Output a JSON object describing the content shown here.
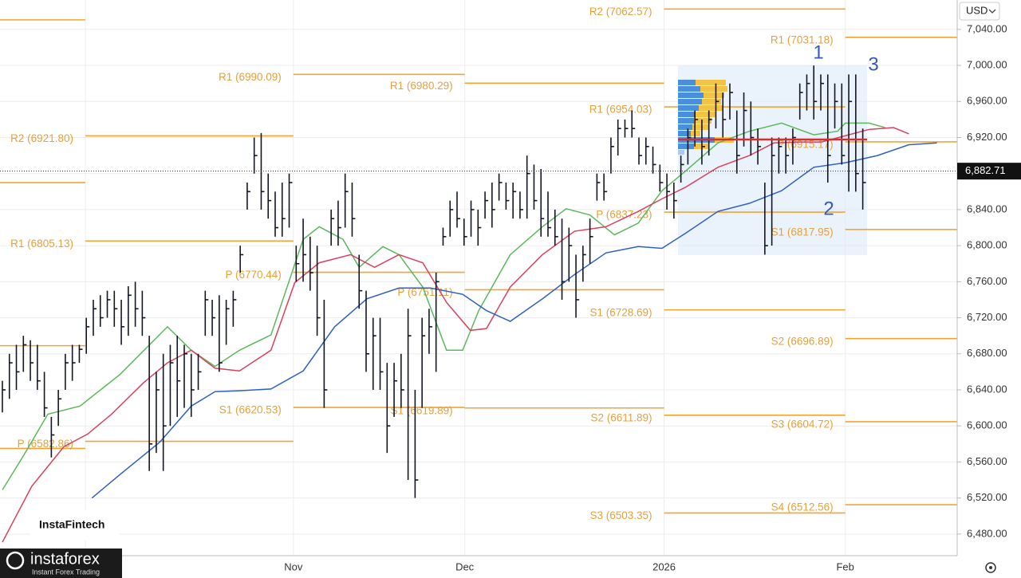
{
  "currency": "USD",
  "watermark": "InstaFintech",
  "brand": {
    "name": "instaforex",
    "tagline": "Instant Forex Trading"
  },
  "annotations": [
    "1",
    "2",
    "3"
  ],
  "chart_data": {
    "type": "ohlc",
    "xlim": [
      -0.34,
      136.5
    ],
    "ylim": [
      6456,
      7072.6
    ],
    "xticks": [
      {
        "value": 41.6,
        "label": "Nov"
      },
      {
        "value": 66.1,
        "label": "Dec"
      },
      {
        "value": 94.6,
        "label": "2026"
      },
      {
        "value": 120.5,
        "label": "Feb"
      }
    ],
    "yticks": [
      {
        "value": 6480,
        "label": "6,480.00"
      },
      {
        "value": 6520,
        "label": "6,520.00"
      },
      {
        "value": 6560,
        "label": "6,560.00"
      },
      {
        "value": 6600,
        "label": "6,600.00"
      },
      {
        "value": 6640,
        "label": "6,640.00"
      },
      {
        "value": 6680,
        "label": "6,680.00"
      },
      {
        "value": 6720,
        "label": "6,720.00"
      },
      {
        "value": 6760,
        "label": "6,760.00"
      },
      {
        "value": 6800,
        "label": "6,800.00"
      },
      {
        "value": 6840,
        "label": "6,840.00"
      },
      {
        "value": 6880,
        "label": "6,880.00"
      },
      {
        "value": 6920,
        "label": "6,920.00"
      },
      {
        "value": 6960,
        "label": "6,960.00"
      },
      {
        "value": 7000,
        "label": "7,000.00"
      },
      {
        "value": 7040,
        "label": "7,040.00"
      }
    ],
    "grid": true,
    "current_price": {
      "value": 6882.71,
      "label": "6,882.71"
    },
    "bars": {
      "color": "#131722",
      "high": [
        6650,
        6680,
        6690,
        6700,
        6695,
        6690,
        6660,
        6610,
        6640,
        6680,
        6690,
        6690,
        6720,
        6740,
        6745,
        6750,
        6750,
        6740,
        6755,
        6760,
        6750,
        6700,
        6660,
        6680,
        6690,
        6700,
        6690,
        6680,
        6680,
        6750,
        6740,
        6745,
        6740,
        6750,
        6800,
        6870,
        6920,
        6925,
        6880,
        6860,
        6870,
        6880,
        6800,
        6830,
        6810,
        6800,
        6740,
        6840,
        6850,
        6880,
        6870,
        6790,
        6750,
        6720,
        6720,
        6670,
        6670,
        6680,
        6730,
        6640,
        6720,
        6730,
        6770,
        6820,
        6850,
        6860,
        6830,
        6850,
        6840,
        6860,
        6870,
        6880,
        6870,
        6870,
        6860,
        6900,
        6890,
        6885,
        6860,
        6840,
        6830,
        6820,
        6790,
        6800,
        6830,
        6880,
        6880,
        6920,
        6940,
        6940,
        6950,
        6920,
        6920,
        6910,
        6890,
        6880,
        6870,
        6900,
        6930,
        6950,
        6940,
        6950,
        6980,
        6970,
        6980,
        6950,
        6970,
        6960,
        6930,
        6870,
        6920,
        6920,
        6920,
        6930,
        6980,
        6990,
        7000,
        6990,
        6990,
        6980,
        6980,
        6990,
        6990,
        6930
      ],
      "low": [
        6615,
        6630,
        6640,
        6660,
        6650,
        6640,
        6610,
        6565,
        6600,
        6640,
        6650,
        6670,
        6680,
        6700,
        6710,
        6720,
        6710,
        6690,
        6700,
        6710,
        6700,
        6550,
        6570,
        6550,
        6600,
        6610,
        6620,
        6610,
        6640,
        6700,
        6700,
        6660,
        6690,
        6710,
        6770,
        6840,
        6880,
        6840,
        6830,
        6810,
        6810,
        6820,
        6760,
        6760,
        6750,
        6700,
        6620,
        6800,
        6800,
        6820,
        6810,
        6730,
        6660,
        6640,
        6640,
        6570,
        6610,
        6620,
        6540,
        6520,
        6620,
        6680,
        6660,
        6800,
        6810,
        6820,
        6800,
        6810,
        6800,
        6830,
        6820,
        6850,
        6840,
        6830,
        6830,
        6830,
        6840,
        6810,
        6810,
        6800,
        6740,
        6760,
        6720,
        6760,
        6780,
        6850,
        6850,
        6880,
        6900,
        6920,
        6920,
        6890,
        6890,
        6880,
        6860,
        6840,
        6830,
        6870,
        6890,
        6910,
        6890,
        6900,
        6930,
        6920,
        6940,
        6880,
        6910,
        6900,
        6890,
        6790,
        6800,
        6880,
        6880,
        6890,
        6940,
        6950,
        6940,
        6950,
        6870,
        6930,
        6890,
        6860,
        6860,
        6840
      ],
      "close": [
        6640,
        6670,
        6660,
        6690,
        6670,
        6650,
        6620,
        6590,
        6630,
        6670,
        6670,
        6685,
        6710,
        6730,
        6720,
        6740,
        6730,
        6710,
        6745,
        6730,
        6720,
        6580,
        6640,
        6600,
        6670,
        6650,
        6680,
        6640,
        6660,
        6740,
        6720,
        6670,
        6730,
        6740,
        6790,
        6860,
        6900,
        6860,
        6850,
        6820,
        6830,
        6870,
        6780,
        6790,
        6770,
        6720,
        6640,
        6830,
        6820,
        6860,
        6830,
        6750,
        6680,
        6700,
        6660,
        6600,
        6650,
        6640,
        6700,
        6540,
        6700,
        6710,
        6760,
        6810,
        6840,
        6830,
        6810,
        6840,
        6820,
        6850,
        6840,
        6870,
        6850,
        6860,
        6840,
        6880,
        6850,
        6830,
        6820,
        6810,
        6760,
        6800,
        6740,
        6790,
        6810,
        6870,
        6860,
        6910,
        6930,
        6930,
        6930,
        6900,
        6910,
        6890,
        6870,
        6860,
        6850,
        6890,
        6920,
        6940,
        6910,
        6940,
        6960,
        6940,
        6970,
        6900,
        6950,
        6920,
        6910,
        6800,
        6900,
        6910,
        6900,
        6920,
        6970,
        6980,
        6960,
        6980,
        6900,
        6960,
        6900,
        6960,
        6880,
        6870
      ]
    },
    "series": [
      {
        "color": "#5cb85c",
        "x": [
          0,
          3.1,
          6.5,
          11.1,
          16.8,
          23.6,
          27,
          30.4,
          33.9,
          38.4,
          43,
          45.3,
          48.7,
          51,
          54.4,
          56.7,
          60.1,
          63.5,
          65.8,
          68.1,
          72.6,
          77.2,
          80.6,
          84,
          87.5,
          90.9,
          94.3,
          97.7,
          102.3,
          106.8,
          111.4,
          116,
          119.4,
          120.5,
          123.9,
          126.2
        ],
        "values": [
          6529,
          6568,
          6613,
          6622,
          6657,
          6710,
          6684,
          6666,
          6684,
          6701,
          6807,
          6821,
          6807,
          6776,
          6799,
          6790,
          6754,
          6684,
          6684,
          6728,
          6790,
          6821,
          6841,
          6834,
          6812,
          6825,
          6861,
          6883,
          6914,
          6927,
          6936,
          6923,
          6927,
          6936,
          6936,
          6931
        ]
      },
      {
        "color": "#d9415e",
        "x": [
          0,
          4.2,
          8.8,
          12.2,
          15.6,
          20.2,
          23.6,
          27,
          30.4,
          33.9,
          38.4,
          41.8,
          45.3,
          49.8,
          53.2,
          56.7,
          60.1,
          63.5,
          66.9,
          69.2,
          72.6,
          77.2,
          81.8,
          86.3,
          90.9,
          94.3,
          97.7,
          102.3,
          106.8,
          110.3,
          113.7,
          117.1,
          120.5,
          123.9,
          127.4,
          129.6
        ],
        "values": [
          6471,
          6533,
          6577,
          6591,
          6613,
          6648,
          6670,
          6684,
          6664,
          6661,
          6684,
          6759,
          6781,
          6790,
          6776,
          6790,
          6781,
          6737,
          6706,
          6708,
          6754,
          6790,
          6816,
          6821,
          6838,
          6852,
          6865,
          6887,
          6900,
          6914,
          6915,
          6915,
          6922,
          6929,
          6931,
          6924
        ]
      },
      {
        "color": "#2f5fc4",
        "x": [
          12.8,
          16.8,
          22.5,
          27,
          30.4,
          33.9,
          38.4,
          43,
          47.5,
          52.1,
          56.7,
          61.2,
          65.8,
          69.2,
          72.6,
          77.2,
          81.8,
          86.3,
          90.9,
          94.3,
          97.7,
          102.3,
          106.8,
          111.4,
          116,
          120.5,
          125.1,
          129.6,
          133.6
        ],
        "values": [
          6520,
          6546,
          6582,
          6622,
          6638,
          6639,
          6641,
          6661,
          6710,
          6741,
          6753,
          6753,
          6746,
          6728,
          6716,
          6741,
          6768,
          6792,
          6799,
          6797,
          6814,
          6838,
          6847,
          6861,
          6887,
          6892,
          6900,
          6912,
          6914
        ]
      }
    ],
    "level_color": "#f0a534",
    "levels": [
      {
        "x": [
          -0.34,
          11.86
        ],
        "value": 7050.6
      },
      {
        "x": [
          -0.34,
          11.86
        ],
        "value": 6870
      },
      {
        "x": [
          -0.34,
          11.86
        ],
        "value": 6689
      },
      {
        "x": [
          -0.34,
          11.86
        ],
        "value": 6575
      },
      {
        "x": [
          11.86,
          41.6
        ],
        "value": 6921.8,
        "label": "R2 (6921.80)"
      },
      {
        "x": [
          11.86,
          41.6
        ],
        "value": 6805.13,
        "label": "R1 (6805.13)"
      },
      {
        "x": [
          11.86,
          41.6
        ],
        "value": 6582.86,
        "label": "P (6582.86)"
      },
      {
        "x": [
          41.6,
          66.1
        ],
        "value": 6990.09,
        "label": "R1 (6990.09)"
      },
      {
        "x": [
          41.6,
          66.1
        ],
        "value": 6770.44,
        "label": "P (6770.44)"
      },
      {
        "x": [
          41.6,
          66.1
        ],
        "value": 6620.53,
        "label": "S1 (6620.53)"
      },
      {
        "x": [
          66.1,
          94.6
        ],
        "value": 6980.29,
        "label": "R1 (6980.29)"
      },
      {
        "x": [
          66.1,
          94.6
        ],
        "value": 6751.11,
        "label": "P (6751.11)"
      },
      {
        "x": [
          66.1,
          94.6
        ],
        "value": 6619.89,
        "label": "S1 (6619.89)"
      },
      {
        "x": [
          94.6,
          120.5
        ],
        "value": 7062.57,
        "label": "R2 (7062.57)"
      },
      {
        "x": [
          94.6,
          120.5
        ],
        "value": 6954.03,
        "label": "R1 (6954.03)"
      },
      {
        "x": [
          94.6,
          120.5
        ],
        "value": 6837.23,
        "label": "P (6837.23)"
      },
      {
        "x": [
          94.6,
          120.5
        ],
        "value": 6728.69,
        "label": "S1 (6728.69)"
      },
      {
        "x": [
          94.6,
          120.5
        ],
        "value": 6611.89,
        "label": "S2 (6611.89)"
      },
      {
        "x": [
          94.6,
          120.5
        ],
        "value": 6503.35,
        "label": "S3 (6503.35)"
      },
      {
        "x": [
          120.5,
          136.5
        ],
        "value": 7031.18,
        "label": "R1 (7031.18)"
      },
      {
        "x": [
          120.5,
          136.5
        ],
        "value": 6915.17,
        "label": "P (6915.17)"
      },
      {
        "x": [
          120.5,
          136.5
        ],
        "value": 6817.95,
        "label": "S1 (6817.95)"
      },
      {
        "x": [
          120.5,
          136.5
        ],
        "value": 6696.89,
        "label": "S2 (6696.89)"
      },
      {
        "x": [
          120.5,
          136.5
        ],
        "value": 6604.72,
        "label": "S3 (6604.72)"
      },
      {
        "x": [
          120.5,
          136.5
        ],
        "value": 6512.56,
        "label": "S4 (6512.56)"
      }
    ]
  }
}
